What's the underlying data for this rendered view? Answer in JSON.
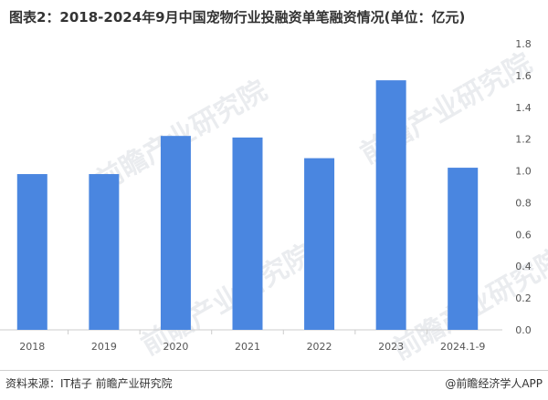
{
  "title": "图表2：2018-2024年9月中国宠物行业投融资单笔融资情况(单位：亿元)",
  "watermark_text": "前瞻产业研究院",
  "source": "资料来源：IT桔子 前瞻产业研究院",
  "brand": "@前瞻经济学人APP",
  "colors": {
    "bar": "#4a86e0",
    "axis": "#cccccc"
  },
  "chart_data": {
    "type": "bar",
    "title": "图表2：2018-2024年9月中国宠物行业投融资单笔融资情况(单位：亿元)",
    "categories": [
      "2018",
      "2019",
      "2020",
      "2021",
      "2022",
      "2023",
      "2024.1-9"
    ],
    "values": [
      0.98,
      0.98,
      1.22,
      1.21,
      1.08,
      1.57,
      1.02
    ],
    "y_ticks": [
      "0.0",
      "0.2",
      "0.4",
      "0.6",
      "0.8",
      "1.0",
      "1.2",
      "1.4",
      "1.6",
      "1.8"
    ],
    "ylim": [
      0,
      1.8
    ],
    "y_axis_side": "right",
    "grid": false,
    "legend": "none"
  }
}
